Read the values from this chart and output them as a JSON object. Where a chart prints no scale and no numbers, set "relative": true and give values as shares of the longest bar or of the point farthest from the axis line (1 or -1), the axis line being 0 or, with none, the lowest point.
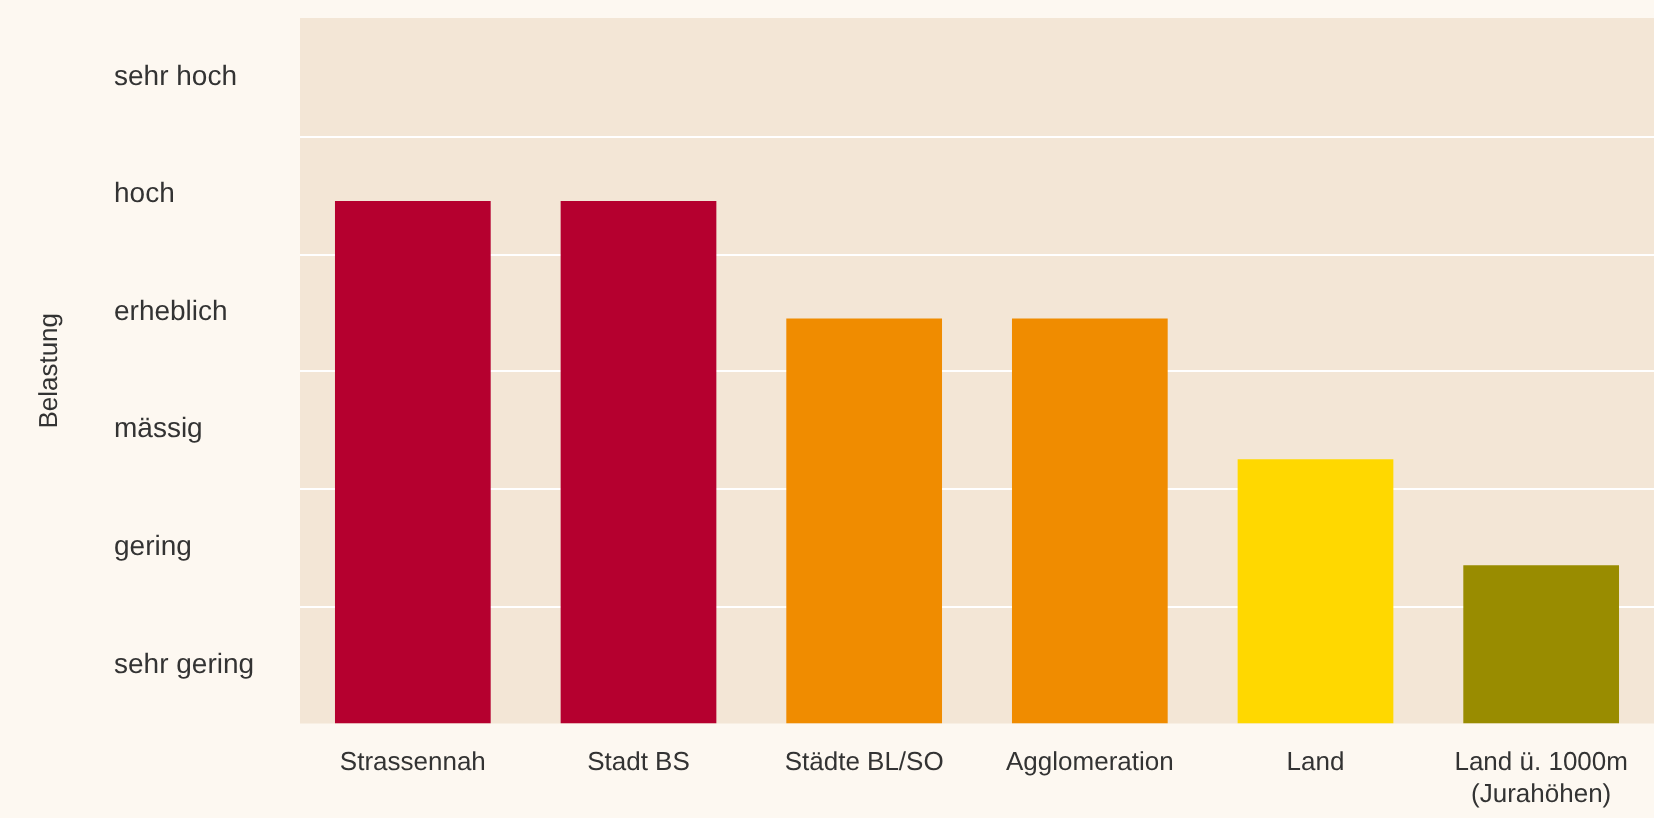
{
  "chart_data": {
    "type": "bar",
    "relative": true,
    "categories": [
      "Strassennah",
      "Stadt BS",
      "Städte BL/SO",
      "Agglomeration",
      "Land",
      "Land ü. 1000m\n(Jurahöhen)"
    ],
    "values": [
      1,
      1,
      0.775,
      0.775,
      0.506,
      0.303
    ],
    "colors": [
      "#b5002f",
      "#b5002f",
      "#f08c00",
      "#f08c00",
      "#ffd800",
      "#998c00"
    ],
    "annotations": [
      "Belastung",
      "sehr hoch",
      "hoch",
      "erheblich",
      "mässig",
      "gering",
      "sehr gering"
    ]
  }
}
